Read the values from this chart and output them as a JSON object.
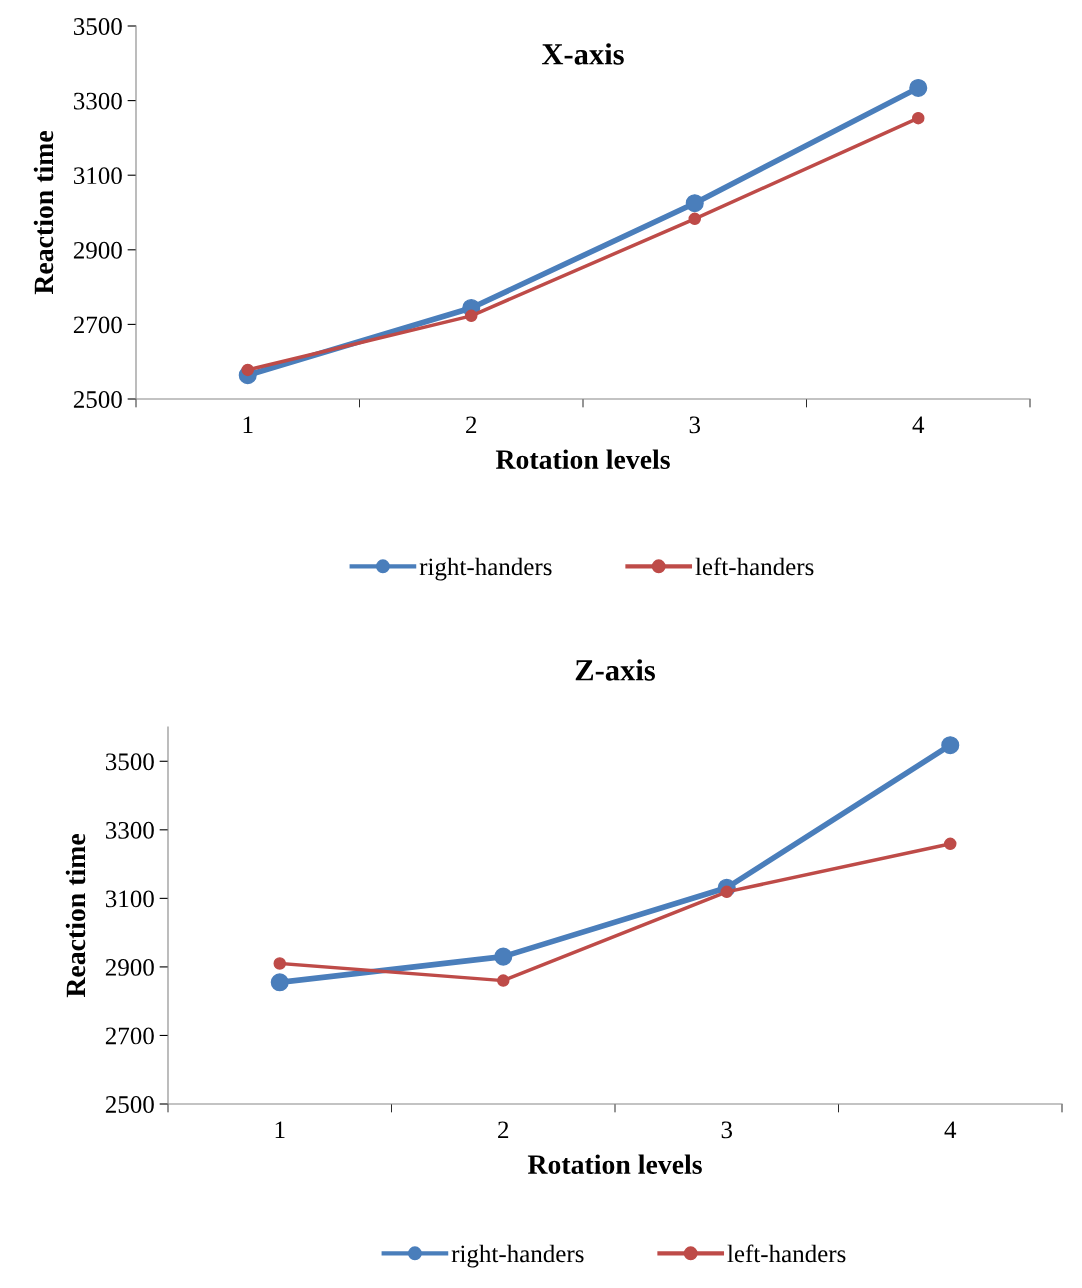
{
  "chart_data": [
    {
      "type": "line",
      "title": "X-axis",
      "xlabel": "Rotation levels",
      "ylabel": "Reaction time",
      "categories": [
        "1",
        "2",
        "3",
        "4"
      ],
      "series": [
        {
          "name": "right-handers",
          "color": "#4a7ebb",
          "values": [
            2564,
            2744,
            3025,
            3334
          ]
        },
        {
          "name": "left-handers",
          "color": "#be4b48",
          "values": [
            2578,
            2723,
            2983,
            3253
          ]
        }
      ],
      "ylim": [
        2500,
        3500
      ],
      "yticks": [
        2500,
        2700,
        2900,
        3100,
        3300,
        3500
      ],
      "marker": "circle",
      "line_style": "solid",
      "grid": false,
      "legend": "bottom"
    },
    {
      "type": "line",
      "title": "Z-axis",
      "xlabel": "Rotation levels",
      "ylabel": "Reaction time",
      "categories": [
        "1",
        "2",
        "3",
        "4"
      ],
      "series": [
        {
          "name": "right-handers",
          "color": "#4a7ebb",
          "values": [
            2855,
            2930,
            3131,
            3547
          ]
        },
        {
          "name": "left-handers",
          "color": "#be4b48",
          "values": [
            2910,
            2860,
            3119,
            3259
          ]
        }
      ],
      "ylim": [
        2500,
        3600
      ],
      "yticks": [
        2500,
        2700,
        2900,
        3100,
        3300,
        3500
      ],
      "marker": "circle",
      "line_style": "solid",
      "grid": false,
      "legend": "bottom"
    }
  ]
}
